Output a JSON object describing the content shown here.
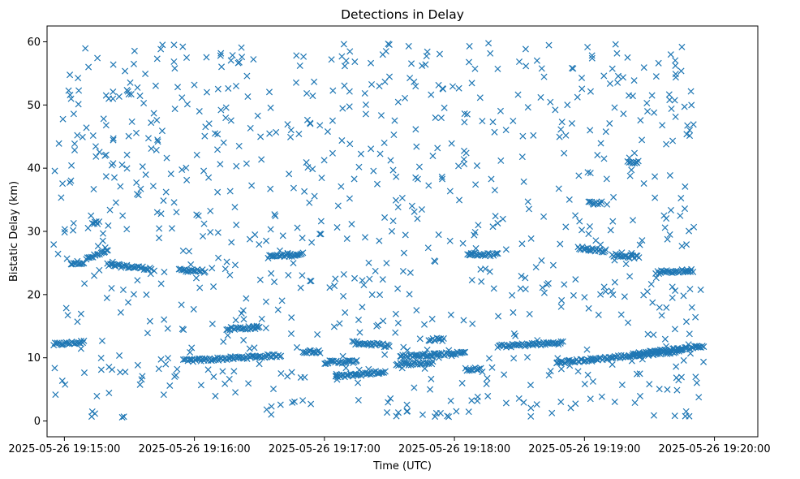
{
  "chart_data": {
    "type": "scatter",
    "title": "Detections in Delay",
    "xlabel": "Time (UTC)",
    "ylabel": "Bistatic Delay (km)",
    "xlim": [
      "2025-05-26 19:14:52",
      "2025-05-26 19:20:20"
    ],
    "ylim": [
      -2.5,
      62.5
    ],
    "xticks": [
      "2025-05-26 19:15:00",
      "2025-05-26 19:16:00",
      "2025-05-26 19:17:00",
      "2025-05-26 19:18:00",
      "2025-05-26 19:19:00",
      "2025-05-26 19:20:00"
    ],
    "yticks": [
      0,
      10,
      20,
      30,
      40,
      50,
      60
    ],
    "grid": false,
    "legend": "none",
    "marker": "x",
    "color": "#1f77b4",
    "time_range": [
      "2025-05-26 19:14:55",
      "2025-05-26 19:19:55"
    ],
    "track_segments": [
      {
        "x": [
          "2025-05-26 19:14:55",
          "2025-05-26 19:15:09"
        ],
        "y": [
          12.1,
          12.5
        ]
      },
      {
        "x": [
          "2025-05-26 19:15:03",
          "2025-05-26 19:15:09"
        ],
        "y": [
          25.0,
          25.1
        ]
      },
      {
        "x": [
          "2025-05-26 19:15:10",
          "2025-05-26 19:15:20"
        ],
        "y": [
          25.6,
          26.9
        ]
      },
      {
        "x": [
          "2025-05-26 19:15:20",
          "2025-05-26 19:15:40"
        ],
        "y": [
          24.7,
          24.1
        ]
      },
      {
        "x": [
          "2025-05-26 19:15:13",
          "2025-05-26 19:15:16"
        ],
        "y": [
          31.3,
          31.3
        ]
      },
      {
        "x": [
          "2025-05-26 19:15:53",
          "2025-05-26 19:16:05"
        ],
        "y": [
          23.9,
          23.7
        ]
      },
      {
        "x": [
          "2025-05-26 19:15:55",
          "2025-05-26 19:16:40"
        ],
        "y": [
          9.5,
          10.4
        ]
      },
      {
        "x": [
          "2025-05-26 19:16:15",
          "2025-05-26 19:16:30"
        ],
        "y": [
          14.6,
          14.8
        ]
      },
      {
        "x": [
          "2025-05-26 19:16:34",
          "2025-05-26 19:16:50"
        ],
        "y": [
          26.0,
          26.4
        ]
      },
      {
        "x": [
          "2025-05-26 19:16:50",
          "2025-05-26 19:16:58"
        ],
        "y": [
          11.0,
          11.0
        ]
      },
      {
        "x": [
          "2025-05-26 19:17:00",
          "2025-05-26 19:17:15"
        ],
        "y": [
          9.3,
          9.4
        ]
      },
      {
        "x": [
          "2025-05-26 19:17:13",
          "2025-05-26 19:17:30"
        ],
        "y": [
          12.4,
          11.9
        ]
      },
      {
        "x": [
          "2025-05-26 19:17:05",
          "2025-05-26 19:17:28"
        ],
        "y": [
          7.0,
          7.8
        ]
      },
      {
        "x": [
          "2025-05-26 19:17:33",
          "2025-05-26 19:17:50"
        ],
        "y": [
          9.0,
          9.2
        ]
      },
      {
        "x": [
          "2025-05-26 19:17:35",
          "2025-05-26 19:18:05"
        ],
        "y": [
          10.2,
          10.8
        ]
      },
      {
        "x": [
          "2025-05-26 19:17:48",
          "2025-05-26 19:17:55"
        ],
        "y": [
          12.9,
          12.9
        ]
      },
      {
        "x": [
          "2025-05-26 19:18:06",
          "2025-05-26 19:18:20"
        ],
        "y": [
          26.4,
          26.3
        ]
      },
      {
        "x": [
          "2025-05-26 19:18:05",
          "2025-05-26 19:18:12"
        ],
        "y": [
          8.2,
          8.2
        ]
      },
      {
        "x": [
          "2025-05-26 19:18:20",
          "2025-05-26 19:18:50"
        ],
        "y": [
          11.8,
          12.4
        ]
      },
      {
        "x": [
          "2025-05-26 19:18:47",
          "2025-05-26 19:19:45"
        ],
        "y": [
          9.2,
          11.1
        ]
      },
      {
        "x": [
          "2025-05-26 19:18:57",
          "2025-05-26 19:19:10"
        ],
        "y": [
          27.4,
          26.9
        ]
      },
      {
        "x": [
          "2025-05-26 19:19:13",
          "2025-05-26 19:19:25"
        ],
        "y": [
          26.3,
          25.9
        ]
      },
      {
        "x": [
          "2025-05-26 19:19:33",
          "2025-05-26 19:19:50"
        ],
        "y": [
          23.5,
          23.8
        ]
      },
      {
        "x": [
          "2025-05-26 19:19:22",
          "2025-05-26 19:19:55"
        ],
        "y": [
          10.6,
          11.8
        ]
      },
      {
        "x": [
          "2025-05-26 19:19:02",
          "2025-05-26 19:19:08"
        ],
        "y": [
          34.5,
          34.5
        ]
      },
      {
        "x": [
          "2025-05-26 19:19:20",
          "2025-05-26 19:19:25"
        ],
        "y": [
          41.0,
          41.0
        ]
      }
    ],
    "clutter_count": 850,
    "clutter_delay_range": [
      0.5,
      59.8
    ]
  }
}
